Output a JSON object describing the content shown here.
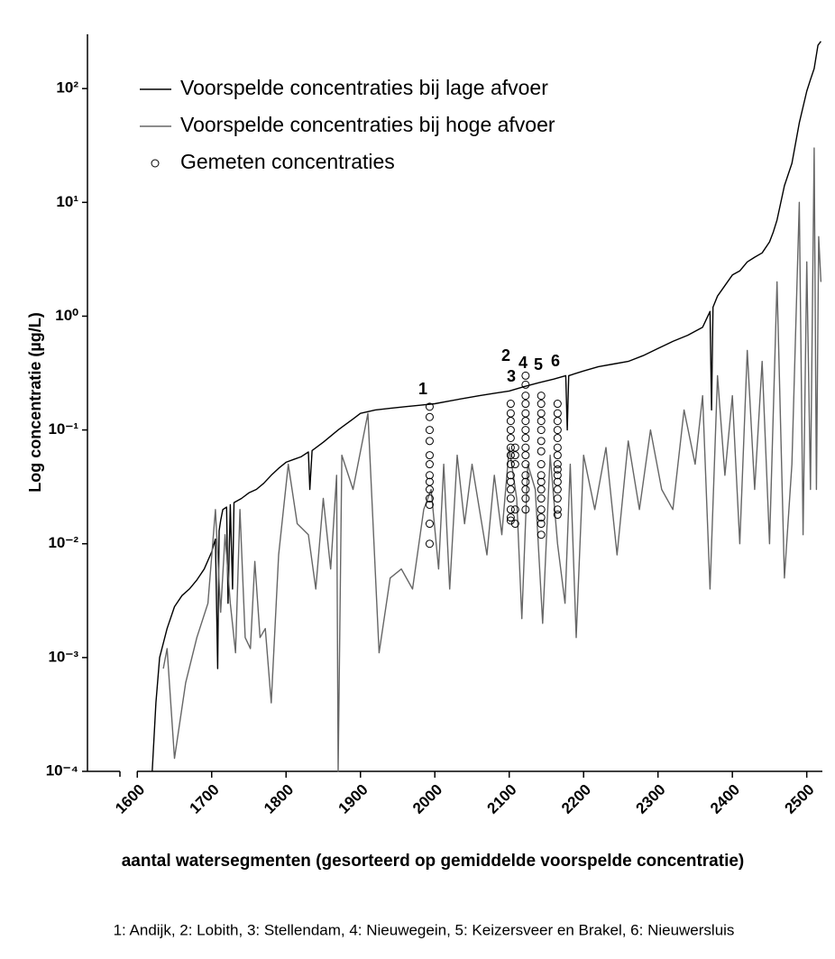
{
  "chart_data": {
    "type": "line",
    "y_label": "Log concentratie (µg/L)",
    "x_label": "aantal watersegmenten (gesorteerd op gemiddelde voorspelde concentratie)",
    "footnote": "1: Andijk, 2: Lobith, 3: Stellendam, 4: Nieuwegein, 5: Keizersveer en Brakel, 6: Nieuwersluis",
    "annotations": [
      "1",
      "2",
      "3",
      "4",
      "5",
      "6"
    ],
    "xlim": [
      1533,
      2521
    ],
    "ylim": [
      0.0001,
      300
    ],
    "yscale": "log",
    "xticks": [
      1600,
      1700,
      1800,
      1900,
      2000,
      2100,
      2200,
      2300,
      2400,
      2500
    ],
    "yticks": [
      {
        "value": 100,
        "label": "10²"
      },
      {
        "value": 10,
        "label": "10¹"
      },
      {
        "value": 1,
        "label": "10⁰"
      },
      {
        "value": 0.1,
        "label": "10⁻¹"
      },
      {
        "value": 0.01,
        "label": "10⁻²"
      },
      {
        "value": 0.001,
        "label": "10⁻³"
      },
      {
        "value": 0.0001,
        "label": "10⁻⁴"
      }
    ],
    "legend": "top-left",
    "series": [
      {
        "name": "Voorspelde concentraties bij lage afvoer",
        "type": "line",
        "color": "#000000",
        "x": [
          1620,
          1625,
          1630,
          1640,
          1650,
          1660,
          1670,
          1680,
          1690,
          1700,
          1705,
          1708,
          1710,
          1712,
          1715,
          1720,
          1722,
          1725,
          1728,
          1730,
          1740,
          1750,
          1760,
          1770,
          1780,
          1790,
          1800,
          1810,
          1820,
          1830,
          1832,
          1835,
          1850,
          1870,
          1890,
          1900,
          1920,
          1940,
          1960,
          1980,
          2000,
          2020,
          2040,
          2060,
          2080,
          2100,
          2120,
          2140,
          2160,
          2176,
          2178,
          2180,
          2200,
          2220,
          2240,
          2260,
          2280,
          2300,
          2320,
          2340,
          2360,
          2370,
          2372,
          2374,
          2380,
          2400,
          2410,
          2420,
          2430,
          2440,
          2450,
          2455,
          2460,
          2470,
          2480,
          2490,
          2500,
          2505,
          2510,
          2515,
          2519
        ],
        "values": [
          0.0001,
          0.0004,
          0.001,
          0.0018,
          0.0028,
          0.0035,
          0.004,
          0.0048,
          0.006,
          0.0085,
          0.011,
          0.0008,
          0.013,
          0.016,
          0.02,
          0.021,
          0.003,
          0.022,
          0.004,
          0.023,
          0.025,
          0.028,
          0.03,
          0.034,
          0.04,
          0.046,
          0.052,
          0.055,
          0.058,
          0.064,
          0.03,
          0.066,
          0.078,
          0.1,
          0.125,
          0.14,
          0.15,
          0.155,
          0.16,
          0.165,
          0.17,
          0.18,
          0.19,
          0.2,
          0.21,
          0.22,
          0.24,
          0.26,
          0.28,
          0.3,
          0.1,
          0.3,
          0.33,
          0.36,
          0.38,
          0.4,
          0.45,
          0.52,
          0.6,
          0.68,
          0.8,
          1.1,
          0.15,
          1.2,
          1.5,
          2.3,
          2.5,
          3.0,
          3.3,
          3.6,
          4.5,
          5.5,
          7,
          14,
          22,
          50,
          95,
          120,
          150,
          240,
          260
        ]
      },
      {
        "name": "Voorspelde concentraties bij hoge afvoer",
        "type": "line",
        "color": "#666666",
        "x": [
          1635,
          1640,
          1650,
          1665,
          1680,
          1695,
          1705,
          1712,
          1718,
          1725,
          1732,
          1738,
          1745,
          1752,
          1758,
          1765,
          1772,
          1780,
          1790,
          1803,
          1815,
          1830,
          1840,
          1850,
          1860,
          1868,
          1870,
          1875,
          1890,
          1910,
          1925,
          1940,
          1955,
          1970,
          1985,
          1995,
          2005,
          2012,
          2020,
          2030,
          2040,
          2050,
          2060,
          2070,
          2080,
          2090,
          2100,
          2110,
          2117,
          2125,
          2135,
          2145,
          2155,
          2165,
          2175,
          2182,
          2190,
          2200,
          2215,
          2230,
          2245,
          2260,
          2275,
          2290,
          2305,
          2320,
          2335,
          2350,
          2360,
          2370,
          2380,
          2390,
          2400,
          2410,
          2420,
          2430,
          2440,
          2450,
          2460,
          2470,
          2480,
          2490,
          2495,
          2500,
          2505,
          2510,
          2513,
          2516,
          2519
        ],
        "values": [
          0.0008,
          0.0012,
          0.00013,
          0.0006,
          0.0015,
          0.003,
          0.02,
          0.0025,
          0.012,
          0.003,
          0.0011,
          0.02,
          0.0015,
          0.0012,
          0.007,
          0.0015,
          0.0018,
          0.0004,
          0.008,
          0.05,
          0.015,
          0.012,
          0.004,
          0.025,
          0.006,
          0.04,
          0.0001,
          0.06,
          0.03,
          0.14,
          0.0011,
          0.005,
          0.006,
          0.004,
          0.02,
          0.03,
          0.006,
          0.05,
          0.004,
          0.06,
          0.015,
          0.05,
          0.02,
          0.008,
          0.04,
          0.012,
          0.07,
          0.025,
          0.0022,
          0.05,
          0.03,
          0.002,
          0.06,
          0.01,
          0.003,
          0.05,
          0.0015,
          0.06,
          0.02,
          0.07,
          0.008,
          0.08,
          0.02,
          0.1,
          0.03,
          0.02,
          0.15,
          0.05,
          0.2,
          0.004,
          0.3,
          0.04,
          0.2,
          0.01,
          0.5,
          0.03,
          0.4,
          0.01,
          2,
          0.005,
          0.05,
          10,
          0.012,
          3,
          0.03,
          30,
          0.03,
          5,
          2
        ]
      },
      {
        "name": "Gemeten concentraties",
        "type": "scatter",
        "color": "#000000",
        "x": [
          1993,
          1993,
          1993,
          1993,
          1993,
          1993,
          1993,
          1993,
          1993,
          1993,
          1993,
          1993,
          1993,
          2102,
          2102,
          2102,
          2102,
          2102,
          2102,
          2102,
          2102,
          2102,
          2102,
          2102,
          2102,
          2102,
          2102,
          2102,
          2108,
          2108,
          2108,
          2108,
          2108,
          2122,
          2122,
          2122,
          2122,
          2122,
          2122,
          2122,
          2122,
          2122,
          2122,
          2122,
          2122,
          2122,
          2122,
          2122,
          2122,
          2143,
          2143,
          2143,
          2143,
          2143,
          2143,
          2143,
          2143,
          2143,
          2143,
          2143,
          2143,
          2143,
          2143,
          2143,
          2143,
          2165,
          2165,
          2165,
          2165,
          2165,
          2165,
          2165,
          2165,
          2165,
          2165,
          2165,
          2165,
          2165,
          2165,
          2165
        ],
        "values": [
          0.16,
          0.13,
          0.1,
          0.08,
          0.06,
          0.05,
          0.04,
          0.035,
          0.03,
          0.025,
          0.022,
          0.015,
          0.01,
          0.17,
          0.14,
          0.12,
          0.1,
          0.085,
          0.07,
          0.06,
          0.05,
          0.04,
          0.035,
          0.03,
          0.025,
          0.02,
          0.017,
          0.016,
          0.07,
          0.06,
          0.05,
          0.02,
          0.015,
          0.3,
          0.25,
          0.2,
          0.17,
          0.14,
          0.12,
          0.1,
          0.085,
          0.07,
          0.06,
          0.05,
          0.04,
          0.035,
          0.03,
          0.025,
          0.02,
          0.2,
          0.17,
          0.14,
          0.12,
          0.1,
          0.08,
          0.065,
          0.05,
          0.04,
          0.035,
          0.03,
          0.025,
          0.02,
          0.017,
          0.015,
          0.012,
          0.17,
          0.14,
          0.12,
          0.1,
          0.085,
          0.07,
          0.06,
          0.05,
          0.045,
          0.04,
          0.035,
          0.03,
          0.025,
          0.02,
          0.018
        ]
      }
    ]
  }
}
